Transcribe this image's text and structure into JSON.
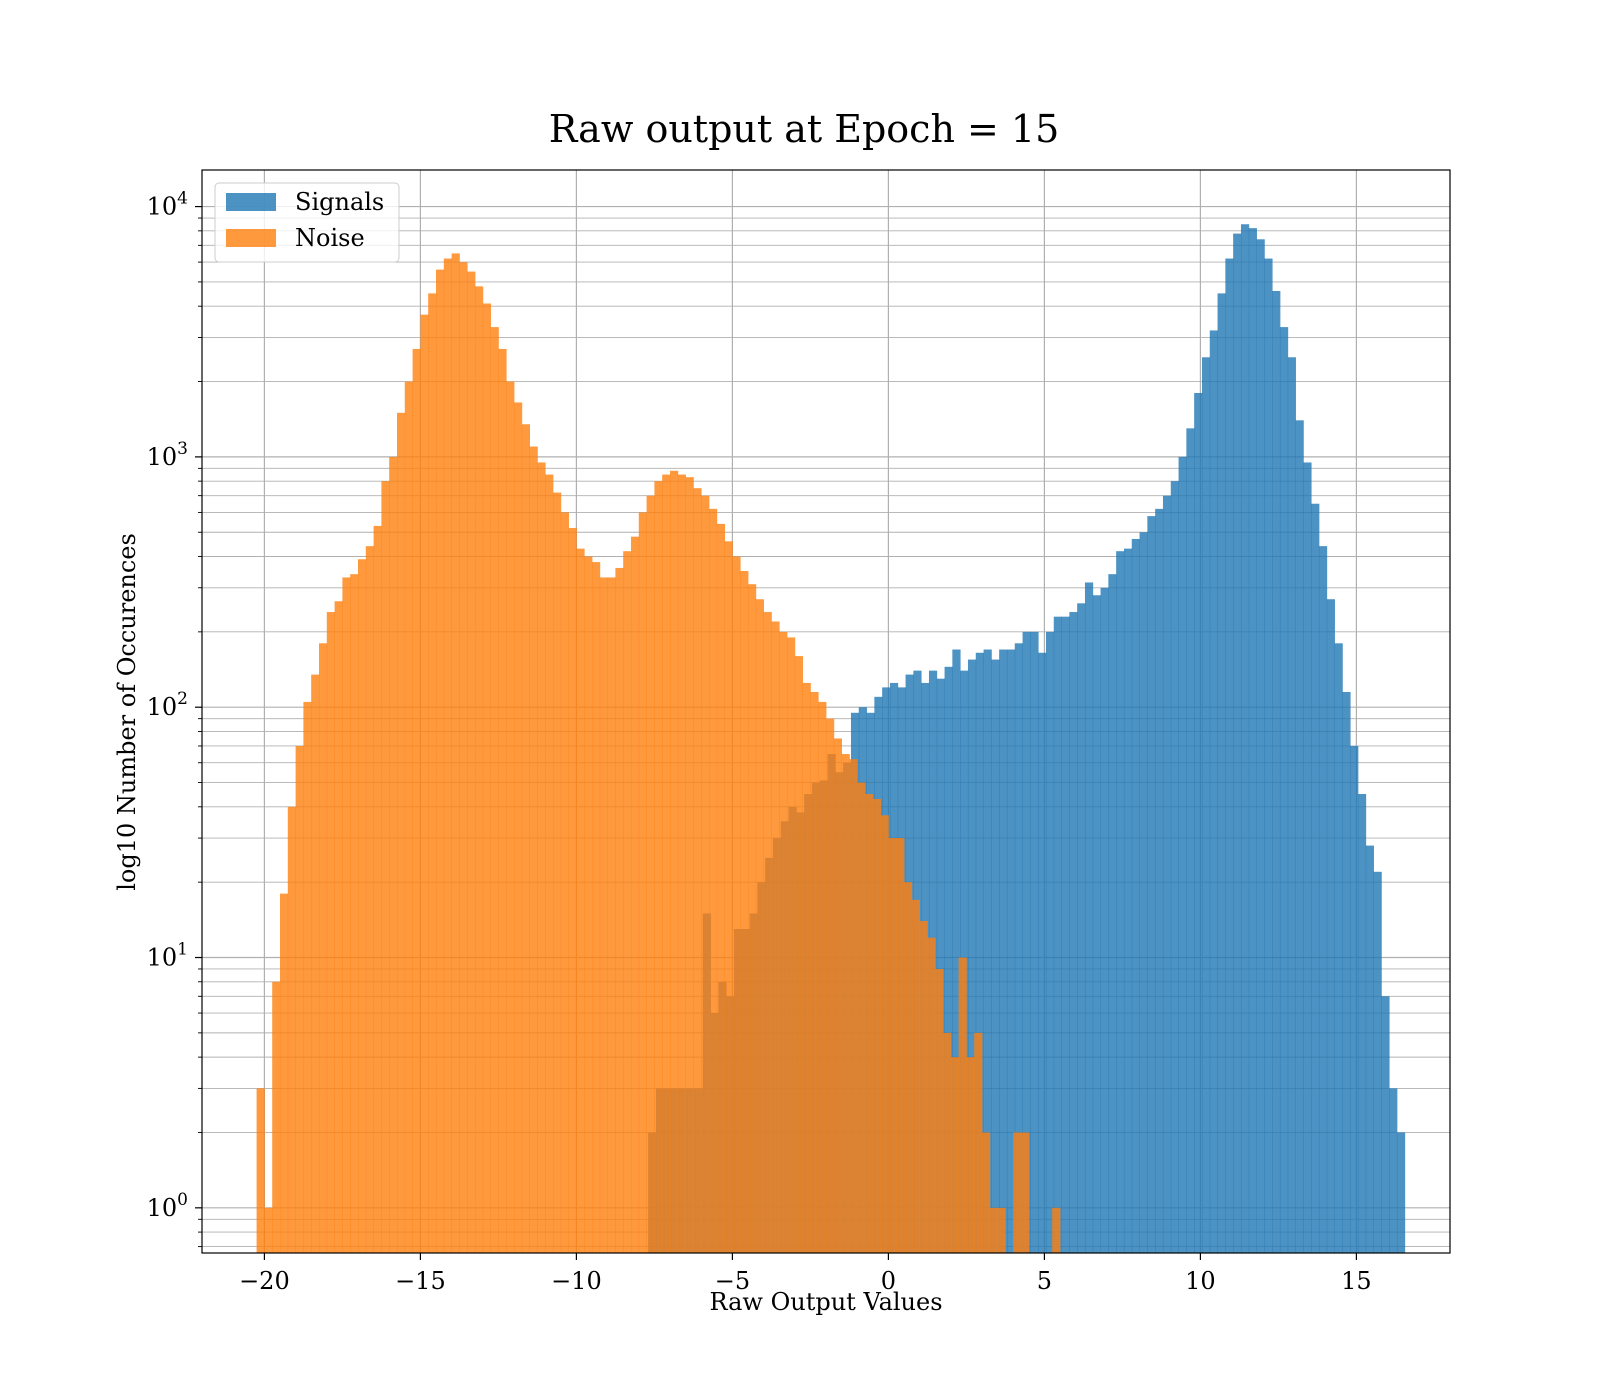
{
  "chart_data": {
    "type": "bar",
    "title": "Raw output at Epoch = 15",
    "xlabel": "Raw Output Values",
    "ylabel": "log10 Number of Occurences",
    "xlim": [
      -22,
      18
    ],
    "ylim": [
      0.66,
      14000
    ],
    "yscale": "log",
    "grid": true,
    "legend_position": "top-left",
    "x_ticks": [
      {
        "value": -20,
        "label": "−20"
      },
      {
        "value": -15,
        "label": "−15"
      },
      {
        "value": -10,
        "label": "−10"
      },
      {
        "value": -5,
        "label": "−5"
      },
      {
        "value": 0,
        "label": "0"
      },
      {
        "value": 5,
        "label": "5"
      },
      {
        "value": 10,
        "label": "10"
      },
      {
        "value": 15,
        "label": "15"
      }
    ],
    "y_ticks": [
      {
        "value": 1,
        "base": "10",
        "exp": "0"
      },
      {
        "value": 10,
        "base": "10",
        "exp": "1"
      },
      {
        "value": 100,
        "base": "10",
        "exp": "2"
      },
      {
        "value": 1000,
        "base": "10",
        "exp": "3"
      },
      {
        "value": 10000,
        "base": "10",
        "exp": "4"
      }
    ],
    "series": [
      {
        "name": "Signals",
        "color": "#1f77b4",
        "opacity": 0.8,
        "bins": [
          [
            -7.7,
            -7.45,
            2
          ],
          [
            -7.45,
            -7.2,
            3
          ],
          [
            -7.2,
            -6.95,
            3
          ],
          [
            -6.95,
            -6.7,
            3
          ],
          [
            -6.7,
            -6.45,
            3
          ],
          [
            -6.45,
            -6.2,
            3
          ],
          [
            -6.2,
            -5.95,
            3
          ],
          [
            -5.95,
            -5.7,
            15
          ],
          [
            -5.7,
            -5.45,
            6
          ],
          [
            -5.45,
            -5.2,
            8
          ],
          [
            -5.2,
            -4.95,
            7
          ],
          [
            -4.95,
            -4.7,
            13
          ],
          [
            -4.7,
            -4.45,
            13
          ],
          [
            -4.45,
            -4.2,
            15
          ],
          [
            -4.2,
            -3.95,
            20
          ],
          [
            -3.95,
            -3.7,
            25
          ],
          [
            -3.7,
            -3.45,
            30
          ],
          [
            -3.45,
            -3.2,
            35
          ],
          [
            -3.2,
            -2.95,
            40
          ],
          [
            -2.95,
            -2.7,
            38
          ],
          [
            -2.7,
            -2.45,
            45
          ],
          [
            -2.45,
            -2.2,
            50
          ],
          [
            -2.2,
            -1.95,
            51
          ],
          [
            -1.95,
            -1.7,
            65
          ],
          [
            -1.7,
            -1.45,
            55
          ],
          [
            -1.45,
            -1.2,
            60
          ],
          [
            -1.2,
            -0.95,
            95
          ],
          [
            -0.95,
            -0.7,
            100
          ],
          [
            -0.7,
            -0.45,
            95
          ],
          [
            -0.45,
            -0.2,
            110
          ],
          [
            -0.2,
            0.05,
            120
          ],
          [
            0.05,
            0.3,
            125
          ],
          [
            0.3,
            0.55,
            120
          ],
          [
            0.55,
            0.8,
            135
          ],
          [
            0.8,
            1.05,
            140
          ],
          [
            1.05,
            1.3,
            125
          ],
          [
            1.3,
            1.55,
            140
          ],
          [
            1.55,
            1.8,
            130
          ],
          [
            1.8,
            2.05,
            145
          ],
          [
            2.05,
            2.3,
            170
          ],
          [
            2.3,
            2.55,
            140
          ],
          [
            2.55,
            2.8,
            155
          ],
          [
            2.8,
            3.05,
            165
          ],
          [
            3.05,
            3.3,
            170
          ],
          [
            3.3,
            3.55,
            155
          ],
          [
            3.55,
            3.8,
            170
          ],
          [
            3.8,
            4.05,
            170
          ],
          [
            4.05,
            4.3,
            180
          ],
          [
            4.3,
            4.55,
            200
          ],
          [
            4.55,
            4.8,
            200
          ],
          [
            4.8,
            5.05,
            165
          ],
          [
            5.05,
            5.3,
            200
          ],
          [
            5.3,
            5.55,
            230
          ],
          [
            5.55,
            5.8,
            230
          ],
          [
            5.8,
            6.05,
            240
          ],
          [
            6.05,
            6.3,
            260
          ],
          [
            6.3,
            6.55,
            315
          ],
          [
            6.55,
            6.8,
            280
          ],
          [
            6.8,
            7.05,
            300
          ],
          [
            7.05,
            7.3,
            340
          ],
          [
            7.3,
            7.55,
            420
          ],
          [
            7.55,
            7.8,
            430
          ],
          [
            7.8,
            8.05,
            470
          ],
          [
            8.05,
            8.3,
            500
          ],
          [
            8.3,
            8.55,
            580
          ],
          [
            8.55,
            8.8,
            620
          ],
          [
            8.8,
            9.05,
            700
          ],
          [
            9.05,
            9.3,
            800
          ],
          [
            9.3,
            9.55,
            1000
          ],
          [
            9.55,
            9.8,
            1300
          ],
          [
            9.8,
            10.05,
            1800
          ],
          [
            10.05,
            10.3,
            2500
          ],
          [
            10.3,
            10.55,
            3200
          ],
          [
            10.55,
            10.8,
            4500
          ],
          [
            10.8,
            11.05,
            6200
          ],
          [
            11.05,
            11.3,
            7800
          ],
          [
            11.3,
            11.55,
            8500
          ],
          [
            11.55,
            11.8,
            8200
          ],
          [
            11.8,
            12.05,
            7400
          ],
          [
            12.05,
            12.3,
            6200
          ],
          [
            12.3,
            12.55,
            4600
          ],
          [
            12.55,
            12.8,
            3300
          ],
          [
            12.8,
            13.05,
            2500
          ],
          [
            13.05,
            13.3,
            1400
          ],
          [
            13.3,
            13.55,
            950
          ],
          [
            13.55,
            13.8,
            650
          ],
          [
            13.8,
            14.05,
            440
          ],
          [
            14.05,
            14.3,
            270
          ],
          [
            14.3,
            14.55,
            180
          ],
          [
            14.55,
            14.8,
            115
          ],
          [
            14.8,
            15.05,
            70
          ],
          [
            15.05,
            15.3,
            45
          ],
          [
            15.3,
            15.55,
            28
          ],
          [
            15.55,
            15.8,
            22
          ],
          [
            15.8,
            16.05,
            7
          ],
          [
            16.05,
            16.3,
            3
          ],
          [
            16.3,
            16.55,
            2
          ]
        ]
      },
      {
        "name": "Noise",
        "color": "#ff7f0e",
        "opacity": 0.8,
        "bins": [
          [
            -20.25,
            -20.0,
            3
          ],
          [
            -20.0,
            -19.75,
            1
          ],
          [
            -19.75,
            -19.5,
            8
          ],
          [
            -19.5,
            -19.25,
            18
          ],
          [
            -19.25,
            -19.0,
            40
          ],
          [
            -19.0,
            -18.75,
            70
          ],
          [
            -18.75,
            -18.5,
            105
          ],
          [
            -18.5,
            -18.25,
            135
          ],
          [
            -18.25,
            -18.0,
            180
          ],
          [
            -18.0,
            -17.75,
            240
          ],
          [
            -17.75,
            -17.5,
            265
          ],
          [
            -17.5,
            -17.25,
            330
          ],
          [
            -17.25,
            -17.0,
            340
          ],
          [
            -17.0,
            -16.75,
            390
          ],
          [
            -16.75,
            -16.5,
            440
          ],
          [
            -16.5,
            -16.25,
            530
          ],
          [
            -16.25,
            -16.0,
            800
          ],
          [
            -16.0,
            -15.75,
            1000
          ],
          [
            -15.75,
            -15.5,
            1500
          ],
          [
            -15.5,
            -15.25,
            2000
          ],
          [
            -15.25,
            -15.0,
            2700
          ],
          [
            -15.0,
            -14.75,
            3700
          ],
          [
            -14.75,
            -14.5,
            4500
          ],
          [
            -14.5,
            -14.25,
            5600
          ],
          [
            -14.25,
            -14.0,
            6200
          ],
          [
            -14.0,
            -13.75,
            6500
          ],
          [
            -13.75,
            -13.5,
            6000
          ],
          [
            -13.5,
            -13.25,
            5500
          ],
          [
            -13.25,
            -13.0,
            4800
          ],
          [
            -13.0,
            -12.75,
            4100
          ],
          [
            -12.75,
            -12.5,
            3300
          ],
          [
            -12.5,
            -12.25,
            2700
          ],
          [
            -12.25,
            -12.0,
            2000
          ],
          [
            -12.0,
            -11.75,
            1650
          ],
          [
            -11.75,
            -11.5,
            1350
          ],
          [
            -11.5,
            -11.25,
            1100
          ],
          [
            -11.25,
            -11.0,
            950
          ],
          [
            -11.0,
            -10.75,
            850
          ],
          [
            -10.75,
            -10.5,
            720
          ],
          [
            -10.5,
            -10.25,
            600
          ],
          [
            -10.25,
            -10.0,
            520
          ],
          [
            -10.0,
            -9.75,
            430
          ],
          [
            -9.75,
            -9.5,
            400
          ],
          [
            -9.5,
            -9.25,
            380
          ],
          [
            -9.25,
            -9.0,
            330
          ],
          [
            -9.0,
            -8.75,
            330
          ],
          [
            -8.75,
            -8.5,
            360
          ],
          [
            -8.5,
            -8.25,
            420
          ],
          [
            -8.25,
            -8.0,
            480
          ],
          [
            -8.0,
            -7.75,
            600
          ],
          [
            -7.75,
            -7.5,
            700
          ],
          [
            -7.5,
            -7.25,
            800
          ],
          [
            -7.25,
            -7.0,
            850
          ],
          [
            -7.0,
            -6.75,
            880
          ],
          [
            -6.75,
            -6.5,
            850
          ],
          [
            -6.5,
            -6.25,
            830
          ],
          [
            -6.25,
            -6.0,
            750
          ],
          [
            -6.0,
            -5.75,
            700
          ],
          [
            -5.75,
            -5.5,
            620
          ],
          [
            -5.5,
            -5.25,
            540
          ],
          [
            -5.25,
            -5.0,
            460
          ],
          [
            -5.0,
            -4.75,
            400
          ],
          [
            -4.75,
            -4.5,
            350
          ],
          [
            -4.5,
            -4.25,
            310
          ],
          [
            -4.25,
            -4.0,
            270
          ],
          [
            -4.0,
            -3.75,
            240
          ],
          [
            -3.75,
            -3.5,
            220
          ],
          [
            -3.5,
            -3.25,
            200
          ],
          [
            -3.25,
            -3.0,
            190
          ],
          [
            -3.0,
            -2.75,
            160
          ],
          [
            -2.75,
            -2.5,
            125
          ],
          [
            -2.5,
            -2.25,
            115
          ],
          [
            -2.25,
            -2.0,
            105
          ],
          [
            -2.0,
            -1.75,
            90
          ],
          [
            -1.75,
            -1.5,
            75
          ],
          [
            -1.5,
            -1.25,
            65
          ],
          [
            -1.25,
            -1.0,
            62
          ],
          [
            -1.0,
            -0.75,
            50
          ],
          [
            -0.75,
            -0.5,
            45
          ],
          [
            -0.5,
            -0.25,
            43
          ],
          [
            -0.25,
            0.0,
            37
          ],
          [
            0.0,
            0.25,
            30
          ],
          [
            0.25,
            0.5,
            30
          ],
          [
            0.5,
            0.75,
            20
          ],
          [
            0.75,
            1.0,
            17
          ],
          [
            1.0,
            1.25,
            14
          ],
          [
            1.25,
            1.5,
            12
          ],
          [
            1.5,
            1.75,
            9
          ],
          [
            1.75,
            2.0,
            5
          ],
          [
            2.0,
            2.25,
            4
          ],
          [
            2.25,
            2.5,
            10
          ],
          [
            2.5,
            2.75,
            4
          ],
          [
            2.75,
            3.0,
            5
          ],
          [
            3.0,
            3.25,
            2
          ],
          [
            3.25,
            3.5,
            1
          ],
          [
            3.5,
            3.75,
            1
          ],
          [
            4.0,
            4.25,
            2
          ],
          [
            4.25,
            4.5,
            2
          ],
          [
            5.25,
            5.5,
            1
          ]
        ]
      }
    ]
  }
}
